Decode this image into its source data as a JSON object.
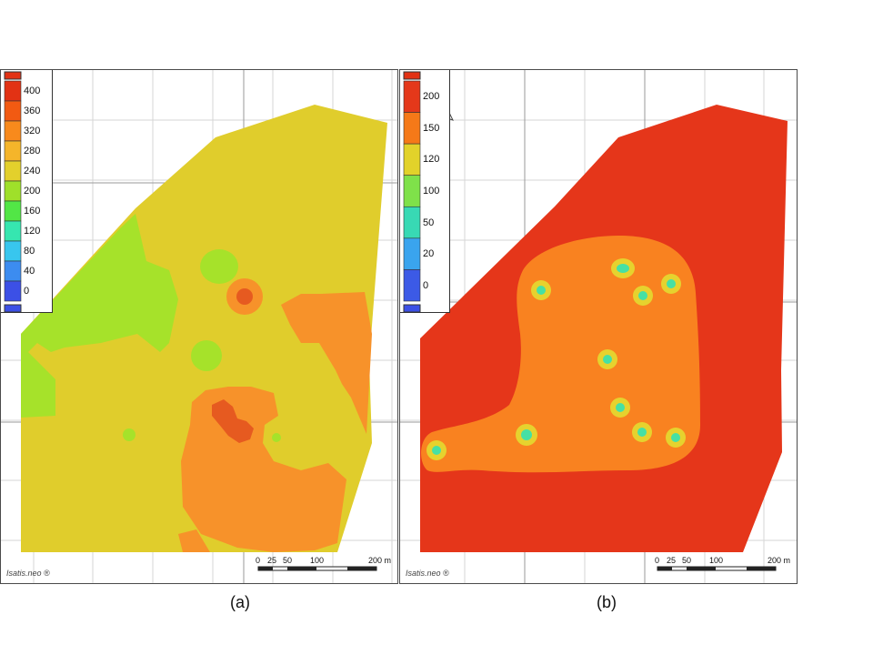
{
  "panel_a": {
    "legend": [
      {
        "label": "400",
        "color": "#e23214"
      },
      {
        "label": "360",
        "color": "#f25a12"
      },
      {
        "label": "320",
        "color": "#f88a1c"
      },
      {
        "label": "280",
        "color": "#f5b52a"
      },
      {
        "label": "240",
        "color": "#e3d02c"
      },
      {
        "label": "200",
        "color": "#9fe02a"
      },
      {
        "label": "160",
        "color": "#52e646"
      },
      {
        "label": "120",
        "color": "#36e6b0"
      },
      {
        "label": "80",
        "color": "#38c6ee"
      },
      {
        "label": "40",
        "color": "#3c8cf0"
      },
      {
        "label": "0",
        "color": "#3c50e6"
      }
    ],
    "watermark": "Isatis.neo ®",
    "scale_labels": [
      "0",
      "25",
      "50",
      "100",
      "200 m"
    ],
    "caption": "(a)",
    "colors": {
      "base": "#e0cd2c",
      "green": "#a6e22a",
      "orange": "#f7922a",
      "red": "#e65a20"
    }
  },
  "panel_b": {
    "legend": [
      {
        "label": "200",
        "color": "#e4381a"
      },
      {
        "label": "150",
        "color": "#f57918"
      },
      {
        "label": "120",
        "color": "#e2d22a"
      },
      {
        "label": "100",
        "color": "#7fe14a"
      },
      {
        "label": "50",
        "color": "#38d9b4"
      },
      {
        "label": "20",
        "color": "#3aa4ee"
      },
      {
        "label": "0",
        "color": "#3c5ae6"
      }
    ],
    "watermark": "Isatis.neo ®",
    "scale_labels": [
      "0",
      "25",
      "50",
      "100",
      "200 m"
    ],
    "caption": "(b)",
    "colors": {
      "base": "#e5361a",
      "orange": "#f98220",
      "ring": "#e6d22e",
      "core": "#46e0a4"
    }
  }
}
